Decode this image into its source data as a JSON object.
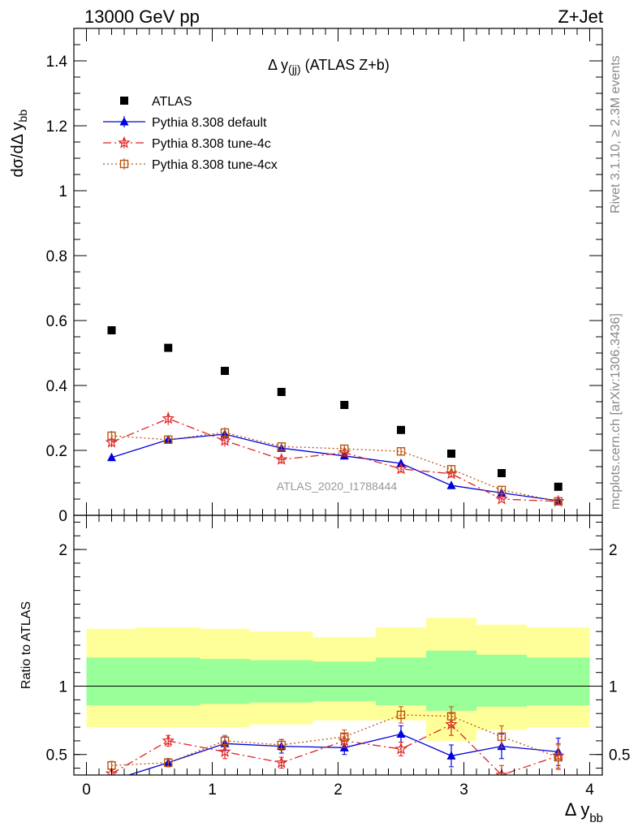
{
  "header": {
    "left": "13000 GeV pp",
    "right": "Z+Jet",
    "side_top": "Rivet 3.1.10, ≥ 2.3M events",
    "side_bottom": "mcplots.cern.ch [arXiv:1306.3436]",
    "watermark": "ATLAS_2020_I1788444"
  },
  "chart_data": [
    {
      "type": "scatter",
      "title_main": "Δ y",
      "title_sub": "(jj)",
      "title_rest": " (ATLAS Z+b)",
      "ylabel_main": "dσ/dΔ y",
      "ylabel_sub": "bb",
      "xlim": [
        -0.1,
        4.1
      ],
      "ylim": [
        0,
        1.5
      ],
      "yticks": [
        0,
        0.2,
        0.4,
        0.6,
        0.8,
        1,
        1.2,
        1.4
      ],
      "ytick_labels": [
        "0",
        "0.2",
        "0.4",
        "0.6",
        "0.8",
        "1",
        "1.2",
        "1.4"
      ],
      "legend_position": "top-left",
      "x": [
        0.2,
        0.65,
        1.1,
        1.55,
        2.05,
        2.5,
        2.9,
        3.3,
        3.75
      ],
      "series": [
        {
          "name": "ATLAS",
          "color": "#000000",
          "marker": "filled-square",
          "line": "none",
          "values": [
            0.57,
            0.516,
            0.445,
            0.38,
            0.34,
            0.263,
            0.19,
            0.13,
            0.088
          ]
        },
        {
          "name": "Pythia 8.308 default",
          "color": "#0000dd",
          "marker": "filled-triangle",
          "line": "solid",
          "values": [
            0.178,
            0.233,
            0.25,
            0.207,
            0.183,
            0.16,
            0.092,
            0.069,
            0.045
          ],
          "errors": [
            0.008,
            0.012,
            0.014,
            0.01,
            0.009,
            0.012,
            0.009,
            0.008,
            0.007
          ]
        },
        {
          "name": "Pythia 8.308 tune-4c",
          "color": "#dd2222",
          "marker": "open-star",
          "line": "dashdot",
          "values": [
            0.225,
            0.298,
            0.23,
            0.172,
            0.193,
            0.143,
            0.128,
            0.05,
            0.043
          ],
          "errors": [
            0.015,
            0.02,
            0.018,
            0.014,
            0.013,
            0.012,
            0.012,
            0.008,
            0.007
          ]
        },
        {
          "name": "Pythia 8.308 tune-4cx",
          "color": "#bb5511",
          "marker": "open-square",
          "line": "dotted",
          "values": [
            0.245,
            0.233,
            0.255,
            0.212,
            0.205,
            0.197,
            0.142,
            0.078,
            0.043
          ],
          "errors": [
            0.015,
            0.013,
            0.016,
            0.012,
            0.012,
            0.012,
            0.012,
            0.01,
            0.008
          ]
        }
      ]
    },
    {
      "type": "scatter",
      "ylabel": "Ratio to ATLAS",
      "xlabel_main": "Δ y",
      "xlabel_sub": "bb",
      "xlim": [
        -0.1,
        4.1
      ],
      "ylim": [
        0.35,
        2.25
      ],
      "xticks": [
        0,
        1,
        2,
        3,
        4
      ],
      "xtick_labels": [
        "0",
        "1",
        "2",
        "3",
        "4"
      ],
      "yticks": [
        0.5,
        1,
        2
      ],
      "ytick_labels": [
        "0.5",
        "1",
        "2"
      ],
      "reference_line": 1,
      "bin_edges": [
        0,
        0.4,
        0.9,
        1.3,
        1.8,
        2.3,
        2.7,
        3.1,
        3.5,
        4.0
      ],
      "band_outer": {
        "color": "#ffff99",
        "low": [
          0.7,
          0.7,
          0.7,
          0.72,
          0.75,
          0.75,
          0.6,
          0.68,
          0.7
        ],
        "high": [
          1.42,
          1.43,
          1.42,
          1.4,
          1.36,
          1.43,
          1.5,
          1.45,
          1.43
        ]
      },
      "band_inner": {
        "color": "#99ff99",
        "low": [
          0.86,
          0.86,
          0.87,
          0.88,
          0.89,
          0.86,
          0.82,
          0.85,
          0.86
        ],
        "high": [
          1.21,
          1.21,
          1.2,
          1.19,
          1.18,
          1.21,
          1.26,
          1.23,
          1.21
        ]
      },
      "x": [
        0.2,
        0.65,
        1.1,
        1.55,
        2.05,
        2.5,
        2.9,
        3.3,
        3.75
      ],
      "series": [
        {
          "name": "Pythia 8.308 default",
          "color": "#0000dd",
          "marker": "filled-triangle",
          "line": "solid",
          "values": [
            0.31,
            0.44,
            0.58,
            0.56,
            0.55,
            0.65,
            0.49,
            0.56,
            0.52
          ],
          "errors": [
            0.02,
            0.03,
            0.05,
            0.05,
            0.05,
            0.06,
            0.08,
            0.09,
            0.1
          ]
        },
        {
          "name": "Pythia 8.308 tune-4c",
          "color": "#dd2222",
          "marker": "open-star",
          "line": "dashdot",
          "values": [
            0.36,
            0.6,
            0.52,
            0.44,
            0.6,
            0.54,
            0.72,
            0.35,
            0.49
          ],
          "errors": [
            0.03,
            0.04,
            0.05,
            0.04,
            0.05,
            0.05,
            0.08,
            0.07,
            0.09
          ]
        },
        {
          "name": "Pythia 8.308 tune-4cx",
          "color": "#bb5511",
          "marker": "open-square",
          "line": "dotted",
          "values": [
            0.42,
            0.44,
            0.6,
            0.57,
            0.63,
            0.79,
            0.78,
            0.63,
            0.48
          ],
          "errors": [
            0.03,
            0.03,
            0.04,
            0.04,
            0.05,
            0.06,
            0.07,
            0.08,
            0.09
          ]
        }
      ]
    }
  ]
}
